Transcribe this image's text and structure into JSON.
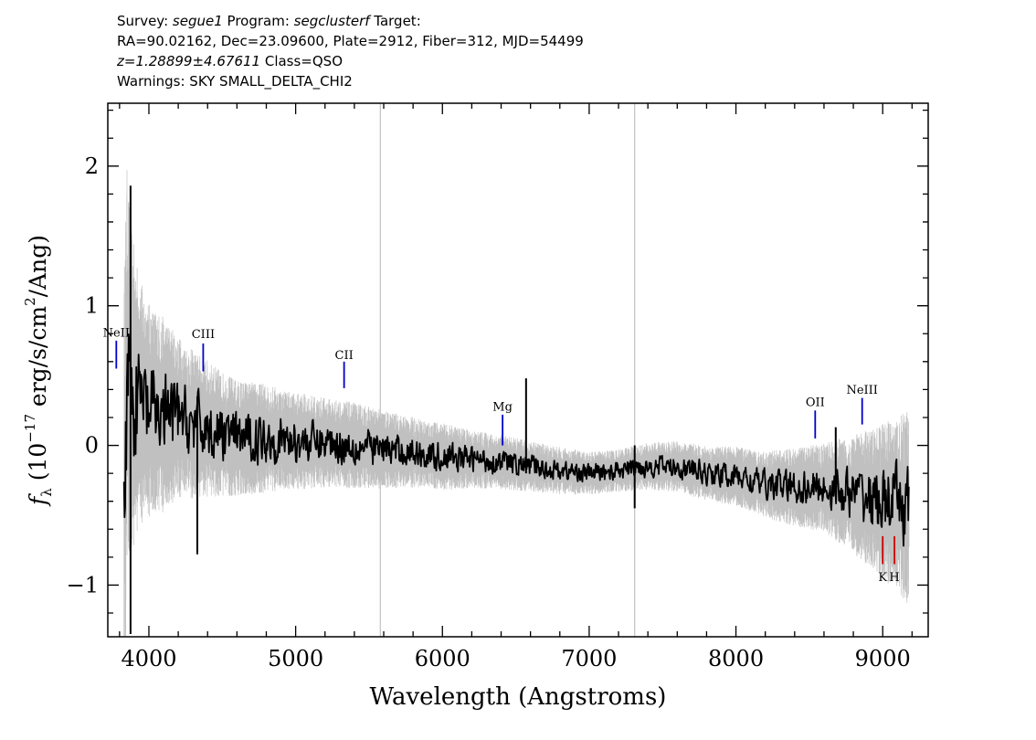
{
  "header": {
    "line1": {
      "survey_label": "Survey: ",
      "survey": "segue1",
      "program_label": " Program: ",
      "program": "segclusterf",
      "target_label": " Target:"
    },
    "line2": "RA=90.02162, Dec=23.09600, Plate=2912, Fiber=312, MJD=54499",
    "line3": {
      "redshift": "z=1.28899±4.67611",
      "class": " Class=QSO"
    },
    "line4": "Warnings: SKY SMALL_DELTA_CHI2"
  },
  "chart_data": {
    "type": "line",
    "title": "",
    "xlabel": "Wavelength (Angstroms)",
    "ylabel_parts": {
      "f": "f",
      "sub": "λ",
      "pre": " (10",
      "exp1": "−17",
      "mid": " erg/s/cm",
      "exp2": "2",
      "post": "/Ang)"
    },
    "xlim": [
      3720,
      9310
    ],
    "ylim": [
      -1.37,
      2.45
    ],
    "x_ticks": [
      4000,
      5000,
      6000,
      7000,
      8000,
      9000
    ],
    "x_tick_labels": [
      "4000",
      "5000",
      "6000",
      "7000",
      "8000",
      "9000"
    ],
    "y_ticks": [
      -1,
      0,
      1,
      2
    ],
    "y_tick_labels": [
      "−1",
      "0",
      "1",
      "2"
    ],
    "grid": false,
    "series": [
      {
        "role": "error",
        "color": "#c0c0c0",
        "x": [
          3830,
          3850,
          3870,
          3900,
          3950,
          4000,
          4100,
          4200,
          4300,
          4400,
          4500,
          4600,
          4800,
          5000,
          5200,
          5400,
          5600,
          5800,
          6000,
          6200,
          6400,
          6600,
          6800,
          7000,
          7200,
          7400,
          7600,
          7800,
          8000,
          8200,
          8400,
          8600,
          8800,
          9000,
          9100,
          9180
        ],
        "values": [
          1.3,
          1.0,
          0.9,
          0.75,
          0.62,
          0.55,
          0.5,
          0.42,
          0.38,
          0.35,
          0.32,
          0.3,
          0.28,
          0.25,
          0.23,
          0.22,
          0.2,
          0.18,
          0.17,
          0.15,
          0.14,
          0.13,
          0.12,
          0.11,
          0.11,
          0.12,
          0.13,
          0.14,
          0.15,
          0.17,
          0.2,
          0.23,
          0.3,
          0.4,
          0.45,
          0.5
        ]
      },
      {
        "role": "flux",
        "color": "#000000",
        "x": [
          3830,
          3850,
          3870,
          3900,
          3950,
          4000,
          4100,
          4200,
          4300,
          4400,
          4500,
          4600,
          4800,
          5000,
          5200,
          5400,
          5600,
          5800,
          6000,
          6200,
          6400,
          6600,
          6800,
          7000,
          7200,
          7400,
          7600,
          7800,
          8000,
          8200,
          8400,
          8600,
          8800,
          9000,
          9100,
          9180
        ],
        "values": [
          -0.6,
          0.6,
          0.45,
          0.35,
          0.3,
          0.25,
          0.22,
          0.2,
          0.15,
          0.12,
          0.08,
          0.05,
          0.05,
          0.03,
          0.02,
          0.0,
          -0.03,
          -0.05,
          -0.08,
          -0.1,
          -0.12,
          -0.15,
          -0.18,
          -0.2,
          -0.18,
          -0.15,
          -0.15,
          -0.2,
          -0.22,
          -0.28,
          -0.3,
          -0.3,
          -0.35,
          -0.4,
          -0.42,
          -0.45
        ]
      }
    ],
    "spikes": [
      {
        "x": 3875,
        "low": -1.35,
        "high": 1.86,
        "color": "#000000"
      },
      {
        "x": 4330,
        "low": -0.78,
        "high": 0.35,
        "color": "#000000"
      },
      {
        "x": 6570,
        "low": -0.2,
        "high": 0.48,
        "color": "#000000"
      },
      {
        "x": 8680,
        "low": -0.35,
        "high": 0.13,
        "color": "#000000"
      },
      {
        "x": 7310,
        "low": -0.45,
        "high": 0.0,
        "color": "#000000"
      }
    ],
    "sky_lines": [
      {
        "x": 5577,
        "color": "#c0c0c0"
      },
      {
        "x": 7310,
        "color": "#c0c0c0"
      }
    ],
    "line_markers": [
      {
        "label": "NeII",
        "x": 3778,
        "y_top": 0.75,
        "y_bottom": 0.55,
        "label_y": 0.78,
        "color": "#0000cc"
      },
      {
        "label": "CIII",
        "x": 4370,
        "y_top": 0.73,
        "y_bottom": 0.53,
        "label_y": 0.77,
        "color": "#0000cc"
      },
      {
        "label": "CII",
        "x": 5330,
        "y_top": 0.6,
        "y_bottom": 0.41,
        "label_y": 0.62,
        "color": "#0000cc"
      },
      {
        "label": "Mg",
        "x": 6410,
        "y_top": 0.22,
        "y_bottom": 0.0,
        "label_y": 0.25,
        "color": "#0000cc"
      },
      {
        "label": "OII",
        "x": 8540,
        "y_top": 0.25,
        "y_bottom": 0.05,
        "label_y": 0.28,
        "color": "#0000cc"
      },
      {
        "label": "NeIII",
        "x": 8860,
        "y_top": 0.34,
        "y_bottom": 0.15,
        "label_y": 0.37,
        "color": "#0000cc"
      },
      {
        "label": "K",
        "x": 9000,
        "y_top": -0.65,
        "y_bottom": -0.85,
        "label_y": -0.97,
        "color": "#cc0000"
      },
      {
        "label": "H",
        "x": 9080,
        "y_top": -0.65,
        "y_bottom": -0.85,
        "label_y": -0.97,
        "color": "#cc0000"
      }
    ]
  }
}
